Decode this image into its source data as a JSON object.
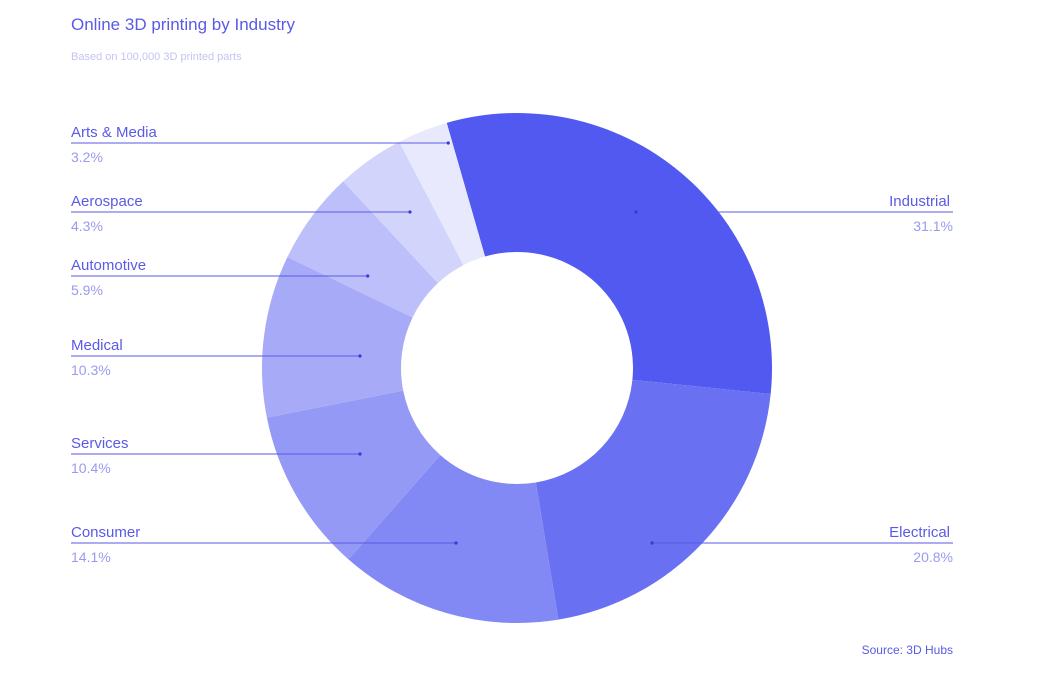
{
  "header": {
    "title": "Online 3D printing by Industry",
    "subtitle": "Based on 100,000 3D printed parts"
  },
  "footer": {
    "source": "Source: 3D Hubs"
  },
  "chart_data": {
    "type": "pie",
    "variant": "donut",
    "title": "Online 3D printing by Industry",
    "subtitle": "Based on 100,000 3D printed parts",
    "unit": "%",
    "slices": [
      {
        "label": "Industrial",
        "value": 31.1,
        "display": "31.1%",
        "color": "#5159f1",
        "side": "right"
      },
      {
        "label": "Electrical",
        "value": 20.8,
        "display": "20.8%",
        "color": "#6a70f2",
        "side": "right"
      },
      {
        "label": "Consumer",
        "value": 14.1,
        "display": "14.1%",
        "color": "#8288f4",
        "side": "left"
      },
      {
        "label": "Services",
        "value": 10.4,
        "display": "10.4%",
        "color": "#9399f5",
        "side": "left"
      },
      {
        "label": "Medical",
        "value": 10.3,
        "display": "10.3%",
        "color": "#a7aaf7",
        "side": "left"
      },
      {
        "label": "Automotive",
        "value": 5.9,
        "display": "5.9%",
        "color": "#bcbff9",
        "side": "left"
      },
      {
        "label": "Aerospace",
        "value": 4.3,
        "display": "4.3%",
        "color": "#d3d4fb",
        "side": "left"
      },
      {
        "label": "Arts & Media",
        "value": 3.2,
        "display": "3.2%",
        "color": "#e8e9fd",
        "side": "left"
      }
    ],
    "legend": "none",
    "source": "Source: 3D Hubs"
  }
}
